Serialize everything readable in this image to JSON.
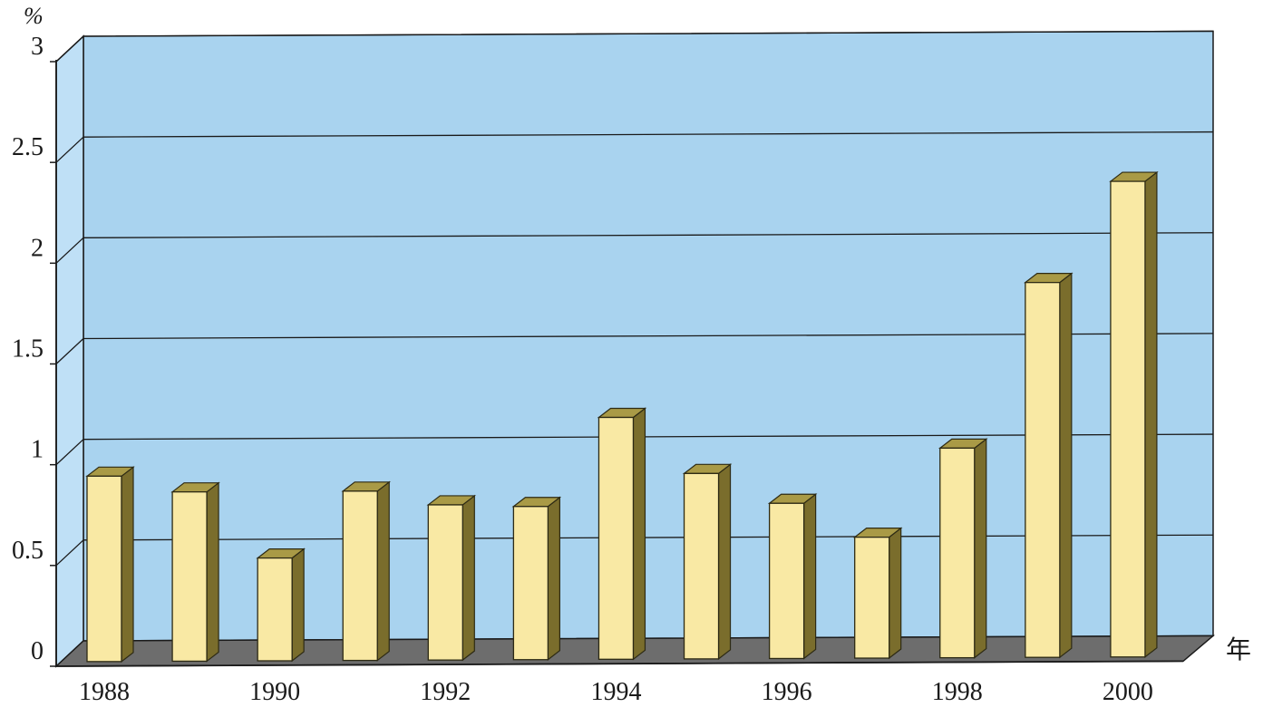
{
  "chart_data": {
    "type": "bar",
    "title": "",
    "xlabel": "年",
    "ylabel": "%",
    "ylim": [
      0,
      3
    ],
    "yticks": [
      "0",
      "0.5",
      "1",
      "1.5",
      "2",
      "2.5",
      "3"
    ],
    "ytick_values": [
      0,
      0.5,
      1,
      1.5,
      2,
      2.5,
      3
    ],
    "xtick_labels": [
      "1988",
      "1990",
      "1992",
      "1994",
      "1996",
      "1998",
      "2000"
    ],
    "categories": [
      "1988",
      "1989",
      "1990",
      "1991",
      "1992",
      "1993",
      "1994",
      "1995",
      "1996",
      "1997",
      "1998",
      "1999",
      "2000"
    ],
    "values": [
      0.92,
      0.84,
      0.51,
      0.84,
      0.77,
      0.76,
      1.2,
      0.92,
      0.77,
      0.6,
      1.04,
      1.86,
      2.36
    ],
    "grid": true,
    "three_d": true,
    "colors": {
      "wall": "#a9d3ef",
      "floor": "#6d6d6d",
      "bar_front": "#f9e9a4",
      "bar_side": "#7a6d2c",
      "bar_top": "#a99a46",
      "grid": "#1a1a1a"
    }
  }
}
